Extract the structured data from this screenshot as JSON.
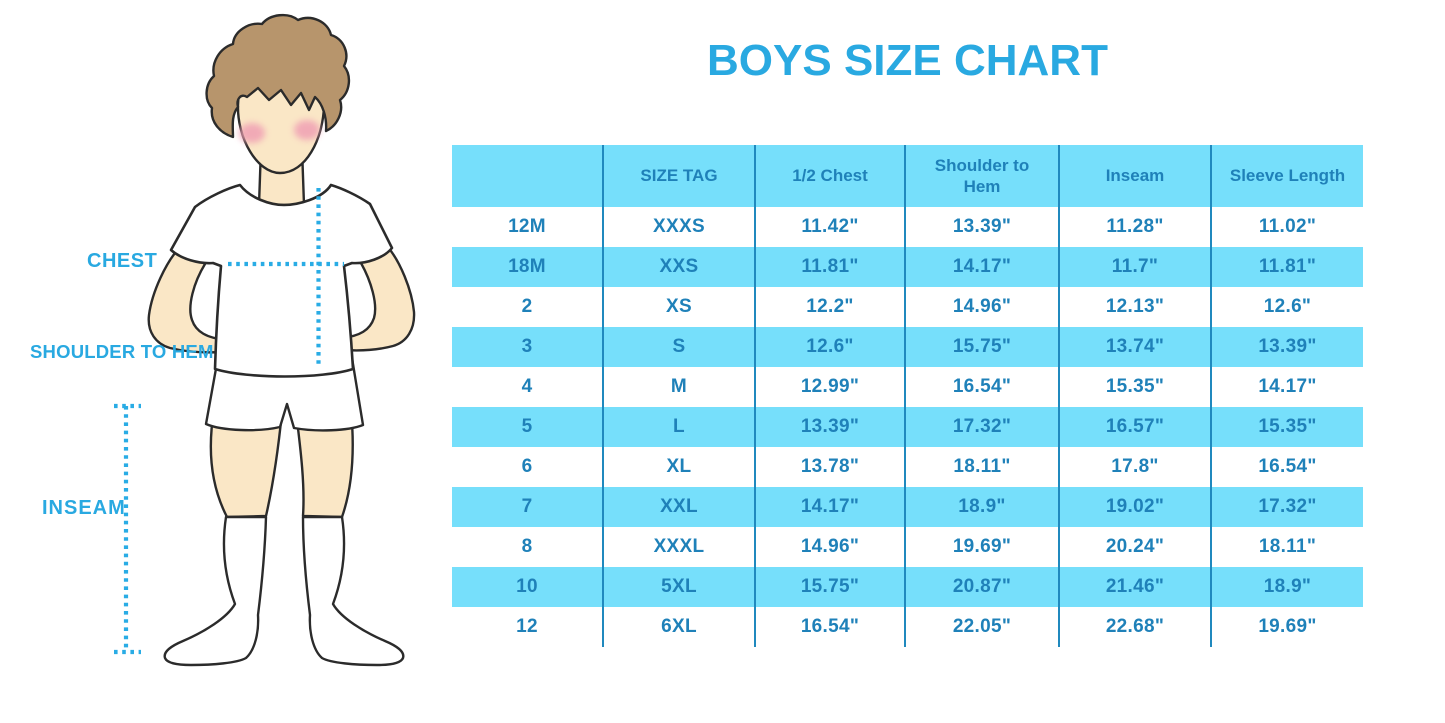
{
  "title": "BOYS SIZE CHART",
  "figure": {
    "labels": {
      "chest": "CHEST",
      "shoulder_to_hem": "SHOULDER TO HEM",
      "inseam": "INSEAM"
    },
    "illustration": "boy-in-white-tshirt-shorts-and-knee-socks",
    "measure_lines": [
      "chest-horizontal",
      "shoulder-to-hem-vertical",
      "inseam-vertical-with-end-caps"
    ]
  },
  "colors": {
    "title_blue": "#29A9E1",
    "cell_text_blue": "#1F81B9",
    "stripe_cyan": "#76DFFB",
    "grid_line_blue": "#2089BE",
    "dot_blue": "#29ACE5",
    "hair_brown": "#B7956C",
    "skin": "#FAE7C6",
    "blush_pink": "#F0A0B4",
    "outline_dark": "#2B2B2B",
    "garment_white": "#FFFFFF"
  },
  "chart_data": {
    "type": "table",
    "title": "BOYS SIZE CHART",
    "headers": [
      "",
      "SIZE TAG",
      "1/2 Chest",
      "Shoulder to Hem",
      "Inseam",
      "Sleeve Length"
    ],
    "rows": [
      [
        "12M",
        "XXXS",
        "11.42\"",
        "13.39\"",
        "11.28\"",
        "11.02\""
      ],
      [
        "18M",
        "XXS",
        "11.81\"",
        "14.17\"",
        "11.7\"",
        "11.81\""
      ],
      [
        "2",
        "XS",
        "12.2\"",
        "14.96\"",
        "12.13\"",
        "12.6\""
      ],
      [
        "3",
        "S",
        "12.6\"",
        "15.75\"",
        "13.74\"",
        "13.39\""
      ],
      [
        "4",
        "M",
        "12.99\"",
        "16.54\"",
        "15.35\"",
        "14.17\""
      ],
      [
        "5",
        "L",
        "13.39\"",
        "17.32\"",
        "16.57\"",
        "15.35\""
      ],
      [
        "6",
        "XL",
        "13.78\"",
        "18.11\"",
        "17.8\"",
        "16.54\""
      ],
      [
        "7",
        "XXL",
        "14.17\"",
        "18.9\"",
        "19.02\"",
        "17.32\""
      ],
      [
        "8",
        "XXXL",
        "14.96\"",
        "19.69\"",
        "20.24\"",
        "18.11\""
      ],
      [
        "10",
        "5XL",
        "15.75\"",
        "20.87\"",
        "21.46\"",
        "18.9\""
      ],
      [
        "12",
        "6XL",
        "16.54\"",
        "22.05\"",
        "22.68\"",
        "19.69\""
      ]
    ],
    "layout": {
      "stripe_rows": "alternating starting with white",
      "grid": "vertical column separators only"
    }
  }
}
